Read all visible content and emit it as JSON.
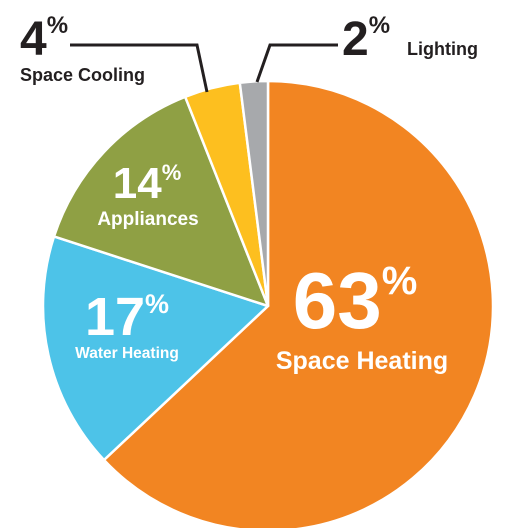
{
  "chart_data": {
    "type": "pie",
    "slices": [
      {
        "label": "Space Heating",
        "percent_text": "63",
        "value": 63,
        "color": "#F28522"
      },
      {
        "label": "Water Heating",
        "percent_text": "17",
        "value": 17,
        "color": "#4DC3E8"
      },
      {
        "label": "Appliances",
        "percent_text": "14",
        "value": 14,
        "color": "#8FA044"
      },
      {
        "label": "Space Cooling",
        "percent_text": "4",
        "value": 4,
        "color": "#FDBF1F"
      },
      {
        "label": "Lighting",
        "percent_text": "2",
        "value": 2,
        "color": "#A7A9AC"
      }
    ],
    "percent_sign": "%",
    "legend": "none"
  }
}
